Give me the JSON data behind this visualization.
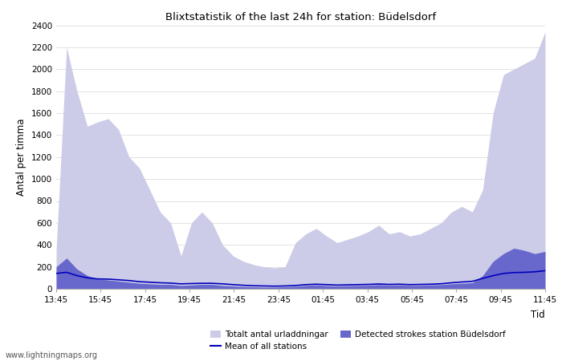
{
  "title": "Blixtstatistik of the last 24h for station: Büdelsdorf",
  "xlabel": "Tid",
  "ylabel": "Antal per timma",
  "xlim_labels": [
    "13:45",
    "15:45",
    "17:45",
    "19:45",
    "21:45",
    "23:45",
    "01:45",
    "03:45",
    "05:45",
    "07:45",
    "09:45",
    "11:45"
  ],
  "ylim": [
    0,
    2400
  ],
  "yticks": [
    0,
    200,
    400,
    600,
    800,
    1000,
    1200,
    1400,
    1600,
    1800,
    2000,
    2200,
    2400
  ],
  "watermark": "www.lightningmaps.org",
  "legend": {
    "totalt": "Totalt antal urladdningar",
    "detected": "Detected strokes station Büdelsdorf",
    "mean": "Mean of all stations"
  },
  "color_totalt": "#cccce8",
  "color_detected": "#6868cc",
  "color_mean": "#0000bb",
  "totalt_values": [
    350,
    2200,
    1800,
    1480,
    1520,
    1550,
    1450,
    1200,
    1100,
    900,
    700,
    600,
    300,
    600,
    700,
    600,
    400,
    300,
    250,
    220,
    200,
    190,
    200,
    420,
    500,
    550,
    480,
    420,
    450,
    480,
    520,
    580,
    500,
    520,
    480,
    500,
    550,
    600,
    700,
    750,
    700,
    900,
    1600,
    1950,
    2000,
    2050,
    2100,
    2340
  ],
  "detected_values": [
    200,
    280,
    180,
    120,
    90,
    80,
    70,
    60,
    50,
    45,
    40,
    40,
    30,
    35,
    40,
    40,
    30,
    25,
    20,
    18,
    15,
    15,
    18,
    22,
    30,
    35,
    28,
    25,
    28,
    30,
    32,
    38,
    32,
    35,
    30,
    32,
    35,
    38,
    45,
    50,
    55,
    120,
    250,
    320,
    370,
    350,
    320,
    340
  ],
  "mean_values": [
    140,
    150,
    120,
    100,
    90,
    88,
    82,
    75,
    65,
    60,
    55,
    52,
    45,
    48,
    50,
    50,
    45,
    38,
    32,
    28,
    26,
    24,
    26,
    30,
    38,
    42,
    38,
    34,
    36,
    38,
    40,
    44,
    40,
    42,
    38,
    40,
    42,
    46,
    55,
    62,
    68,
    95,
    120,
    140,
    148,
    150,
    155,
    165
  ]
}
